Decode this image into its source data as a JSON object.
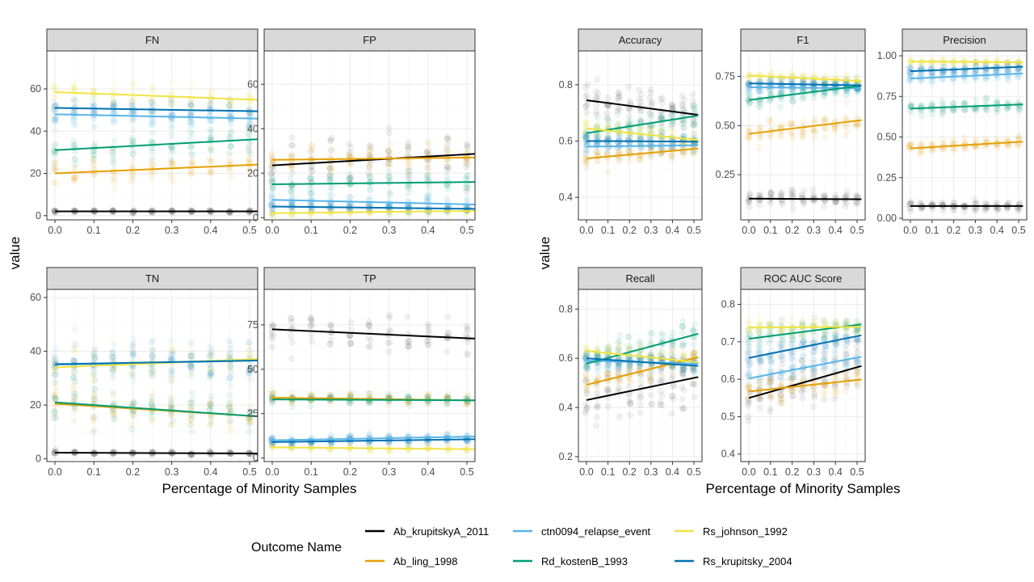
{
  "colors": {
    "Ab_krupitskyA_2011": "#000000",
    "Ab_ling_1998": "#E69F00",
    "ctn0094_relapse_event": "#56B4E9",
    "Rd_kostenB_1993": "#009E73",
    "Rs_johnson_1992": "#F0E442",
    "Rs_krupitsky_2004": "#0072B2"
  },
  "legend": {
    "title": "Outcome Name",
    "entries": [
      "Ab_krupitskyA_2011",
      "ctn0094_relapse_event",
      "Rs_johnson_1992",
      "Ab_ling_1998",
      "Rd_kostenB_1993",
      "Rs_krupitsky_2004"
    ]
  },
  "groups": [
    {
      "xlabel": "Percentage of Minority Samples",
      "ylabel": "value"
    },
    {
      "xlabel": "Percentage of Minority Samples",
      "ylabel": "value"
    }
  ],
  "chart_data": [
    {
      "type": "scatter",
      "title": "FN",
      "xlim": [
        0,
        0.5
      ],
      "ylim": [
        -2,
        78
      ],
      "xticks": [
        "0.0",
        "0.1",
        "0.2",
        "0.3",
        "0.4",
        "0.5"
      ],
      "yticks": [
        0,
        20,
        40,
        60
      ],
      "series": [
        {
          "name": "Ab_krupitskyA_2011",
          "y0": 2,
          "y1": 2,
          "spread": 0.6
        },
        {
          "name": "Ab_ling_1998",
          "y0": 20,
          "y1": 24,
          "spread": 6
        },
        {
          "name": "ctn0094_relapse_event",
          "y0": 48,
          "y1": 46,
          "spread": 6
        },
        {
          "name": "Rd_kostenB_1993",
          "y0": 31,
          "y1": 36,
          "spread": 6
        },
        {
          "name": "Rs_johnson_1992",
          "y0": 58.5,
          "y1": 55,
          "spread": 5
        },
        {
          "name": "Rs_krupitsky_2004",
          "y0": 51,
          "y1": 49.5,
          "spread": 5
        }
      ]
    },
    {
      "type": "scatter",
      "title": "FP",
      "xlim": [
        0,
        0.5
      ],
      "ylim": [
        -1,
        75
      ],
      "xticks": [
        "0.0",
        "0.1",
        "0.2",
        "0.3",
        "0.4",
        "0.5"
      ],
      "yticks": [
        0,
        20,
        40,
        60
      ],
      "series": [
        {
          "name": "Ab_krupitskyA_2011",
          "y0": 23.5,
          "y1": 28.5,
          "spread": 10
        },
        {
          "name": "Ab_ling_1998",
          "y0": 26,
          "y1": 27,
          "spread": 6
        },
        {
          "name": "ctn0094_relapse_event",
          "y0": 8,
          "y1": 6,
          "spread": 3
        },
        {
          "name": "Rd_kostenB_1993",
          "y0": 15,
          "y1": 16,
          "spread": 4
        },
        {
          "name": "Rs_johnson_1992",
          "y0": 2,
          "y1": 3,
          "spread": 1.2
        },
        {
          "name": "Rs_krupitsky_2004",
          "y0": 5,
          "y1": 4,
          "spread": 2
        }
      ]
    },
    {
      "type": "scatter",
      "title": "Accuracy",
      "xlim": [
        0,
        0.5
      ],
      "ylim": [
        0.32,
        0.92
      ],
      "xticks": [
        "0.0",
        "0.1",
        "0.2",
        "0.3",
        "0.4",
        "0.5"
      ],
      "yticks": [
        0.4,
        0.6,
        0.8
      ],
      "series": [
        {
          "name": "Ab_krupitskyA_2011",
          "y0": 0.745,
          "y1": 0.695,
          "spread": 0.06
        },
        {
          "name": "Ab_ling_1998",
          "y0": 0.538,
          "y1": 0.572,
          "spread": 0.03
        },
        {
          "name": "ctn0094_relapse_event",
          "y0": 0.58,
          "y1": 0.585,
          "spread": 0.03
        },
        {
          "name": "Rd_kostenB_1993",
          "y0": 0.628,
          "y1": 0.688,
          "spread": 0.04
        },
        {
          "name": "Rs_johnson_1992",
          "y0": 0.645,
          "y1": 0.605,
          "spread": 0.03
        },
        {
          "name": "Rs_krupitsky_2004",
          "y0": 0.6,
          "y1": 0.598,
          "spread": 0.025
        }
      ]
    },
    {
      "type": "scatter",
      "title": "F1",
      "xlim": [
        0,
        0.5
      ],
      "ylim": [
        0.02,
        0.88
      ],
      "xticks": [
        "0.0",
        "0.1",
        "0.2",
        "0.3",
        "0.4",
        "0.5"
      ],
      "yticks": [
        0.25,
        0.5,
        0.75
      ],
      "yticklabels": [
        "0.25",
        "0.50",
        "0.75"
      ],
      "series": [
        {
          "name": "Ab_krupitskyA_2011",
          "y0": 0.128,
          "y1": 0.125,
          "spread": 0.04
        },
        {
          "name": "Ab_ling_1998",
          "y0": 0.458,
          "y1": 0.525,
          "spread": 0.05
        },
        {
          "name": "ctn0094_relapse_event",
          "y0": 0.695,
          "y1": 0.69,
          "spread": 0.03
        },
        {
          "name": "Rd_kostenB_1993",
          "y0": 0.63,
          "y1": 0.7,
          "spread": 0.04
        },
        {
          "name": "Rs_johnson_1992",
          "y0": 0.755,
          "y1": 0.728,
          "spread": 0.025
        },
        {
          "name": "Rs_krupitsky_2004",
          "y0": 0.715,
          "y1": 0.705,
          "spread": 0.025
        }
      ]
    },
    {
      "type": "scatter",
      "title": "Precision",
      "xlim": [
        0,
        0.5
      ],
      "ylim": [
        -0.01,
        1.03
      ],
      "xticks": [
        "0.0",
        "0.1",
        "0.2",
        "0.3",
        "0.4",
        "0.5"
      ],
      "yticks": [
        0,
        0.25,
        0.5,
        0.75,
        1
      ],
      "yticklabels": [
        "0.00",
        "0.25",
        "0.50",
        "0.75",
        "1.00"
      ],
      "series": [
        {
          "name": "Ab_krupitskyA_2011",
          "y0": 0.075,
          "y1": 0.075,
          "spread": 0.025
        },
        {
          "name": "Ab_ling_1998",
          "y0": 0.43,
          "y1": 0.47,
          "spread": 0.03
        },
        {
          "name": "ctn0094_relapse_event",
          "y0": 0.86,
          "y1": 0.89,
          "spread": 0.04
        },
        {
          "name": "Rd_kostenB_1993",
          "y0": 0.675,
          "y1": 0.7,
          "spread": 0.04
        },
        {
          "name": "Rs_johnson_1992",
          "y0": 0.965,
          "y1": 0.96,
          "spread": 0.012
        },
        {
          "name": "Rs_krupitsky_2004",
          "y0": 0.905,
          "y1": 0.932,
          "spread": 0.025
        }
      ]
    },
    {
      "type": "scatter",
      "title": "TN",
      "xlim": [
        0,
        0.5
      ],
      "ylim": [
        -1,
        63
      ],
      "xticks": [
        "0.0",
        "0.1",
        "0.2",
        "0.3",
        "0.4",
        "0.5"
      ],
      "yticks": [
        0,
        20,
        40,
        60
      ],
      "series": [
        {
          "name": "Ab_krupitskyA_2011",
          "y0": 2.3,
          "y1": 2,
          "spread": 0.6
        },
        {
          "name": "Ab_ling_1998",
          "y0": 20.5,
          "y1": 16,
          "spread": 6
        },
        {
          "name": "ctn0094_relapse_event",
          "y0": 35,
          "y1": 36.5,
          "spread": 7
        },
        {
          "name": "Rd_kostenB_1993",
          "y0": 21,
          "y1": 16,
          "spread": 6
        },
        {
          "name": "Rs_johnson_1992",
          "y0": 34,
          "y1": 37,
          "spread": 6
        },
        {
          "name": "Rs_krupitsky_2004",
          "y0": 35.2,
          "y1": 36.5,
          "spread": 6
        }
      ]
    },
    {
      "type": "scatter",
      "title": "TP",
      "xlim": [
        0,
        0.5
      ],
      "ylim": [
        -2,
        95
      ],
      "xticks": [
        "0.0",
        "0.1",
        "0.2",
        "0.3",
        "0.4",
        "0.5"
      ],
      "yticks": [
        0,
        25,
        50,
        75
      ],
      "series": [
        {
          "name": "Ab_krupitskyA_2011",
          "y0": 72.5,
          "y1": 67.5,
          "spread": 9
        },
        {
          "name": "Ab_ling_1998",
          "y0": 34,
          "y1": 32.5,
          "spread": 3
        },
        {
          "name": "ctn0094_relapse_event",
          "y0": 10,
          "y1": 12,
          "spread": 2
        },
        {
          "name": "Rd_kostenB_1993",
          "y0": 33,
          "y1": 32.5,
          "spread": 3
        },
        {
          "name": "Rs_johnson_1992",
          "y0": 6,
          "y1": 5,
          "spread": 1.2
        },
        {
          "name": "Rs_krupitsky_2004",
          "y0": 9,
          "y1": 10.5,
          "spread": 2
        }
      ]
    },
    {
      "type": "scatter",
      "title": "Recall",
      "xlim": [
        0,
        0.5
      ],
      "ylim": [
        0.18,
        0.88
      ],
      "xticks": [
        "0.0",
        "0.1",
        "0.2",
        "0.3",
        "0.4",
        "0.5"
      ],
      "yticks": [
        0.2,
        0.4,
        0.6,
        0.8
      ],
      "series": [
        {
          "name": "Ab_krupitskyA_2011",
          "y0": 0.43,
          "y1": 0.52,
          "spread": 0.1
        },
        {
          "name": "Ab_ling_1998",
          "y0": 0.492,
          "y1": 0.6,
          "spread": 0.05
        },
        {
          "name": "ctn0094_relapse_event",
          "y0": 0.59,
          "y1": 0.578,
          "spread": 0.04
        },
        {
          "name": "Rd_kostenB_1993",
          "y0": 0.578,
          "y1": 0.695,
          "spread": 0.06
        },
        {
          "name": "Rs_johnson_1992",
          "y0": 0.63,
          "y1": 0.585,
          "spread": 0.04
        },
        {
          "name": "Rs_krupitsky_2004",
          "y0": 0.6,
          "y1": 0.57,
          "spread": 0.03
        }
      ]
    },
    {
      "type": "scatter",
      "title": "ROC AUC Score",
      "xlim": [
        0,
        0.5
      ],
      "ylim": [
        0.38,
        0.84
      ],
      "xticks": [
        "0.0",
        "0.1",
        "0.2",
        "0.3",
        "0.4",
        "0.5"
      ],
      "yticks": [
        0.4,
        0.5,
        0.6,
        0.7,
        0.8
      ],
      "series": [
        {
          "name": "Ab_krupitskyA_2011",
          "y0": 0.55,
          "y1": 0.632,
          "spread": 0.06
        },
        {
          "name": "Ab_ling_1998",
          "y0": 0.567,
          "y1": 0.598,
          "spread": 0.03
        },
        {
          "name": "ctn0094_relapse_event",
          "y0": 0.602,
          "y1": 0.658,
          "spread": 0.03
        },
        {
          "name": "Rd_kostenB_1993",
          "y0": 0.708,
          "y1": 0.745,
          "spread": 0.03
        },
        {
          "name": "Rs_johnson_1992",
          "y0": 0.738,
          "y1": 0.74,
          "spread": 0.02
        },
        {
          "name": "Rs_krupitsky_2004",
          "y0": 0.657,
          "y1": 0.715,
          "spread": 0.03
        }
      ]
    }
  ]
}
